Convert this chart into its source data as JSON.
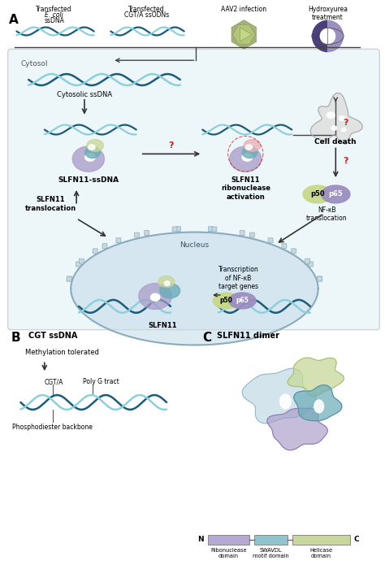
{
  "bg_color": "#ffffff",
  "cytosol_bg": "#ddeef5",
  "nucleus_bg": "#c5dcea",
  "dna_dark": "#1a5c7a",
  "dna_light": "#8ecfdc",
  "protein_purple": "#a89ac8",
  "protein_green": "#c8d89a",
  "protein_teal": "#6aacb8",
  "protein_lightblue": "#c5dce8",
  "protein_pink": "#e8b0b8",
  "nfkb_p50": "#c8d88a",
  "nfkb_p65": "#9b8fc0",
  "ribonuclease_color": "#b5a8d5",
  "swavdl_color": "#90c4d0",
  "helicase_color": "#c8d89a",
  "virus_color": "#b8c87a",
  "pill_dark": "#4a3f7a",
  "pill_light": "#9b8fc0",
  "arrow_dark": "#333333",
  "arrow_red": "#cc2222",
  "nucleus_border": "#8aacbc",
  "cell_death_fill": "#e0e0e0",
  "labels": {
    "panel_A": "A",
    "panel_B": "B",
    "panel_C": "C",
    "cytosol": "Cytosol",
    "cytosolic_ssdna": "Cytosolic ssDNA",
    "slfn11_ssdna": "SLFN11-ssDNA",
    "slfn11_ribo": "SLFN11\nribonuclease\nactivation",
    "slfn11_translocate": "SLFN11\ntranslocation",
    "cell_death": "Cell death",
    "nfkb_translocate": "NF-κB\ntranslocation",
    "nucleus": "Nucleus",
    "transcription": "Transcription\nof NF-κB\ntarget genes",
    "slfn11_nucleus": "SLFN11",
    "cgt_ssdna": "CGT ssDNA",
    "methylation": "Methylation tolerated",
    "cgta": "CGT/A",
    "poly_g": "Poly G tract",
    "phosphodiester": "Phosphodiester backbone",
    "slfn11_dimer": "SLFN11 dimer",
    "N_label": "N",
    "C_label": "C",
    "ribonuclease_domain": "Ribonuclease\ndomain",
    "swavdl_domain": "SWAVDL\nmotif domain",
    "helicase_domain": "Helicase\ndomain",
    "p50": "p50",
    "p65": "p65",
    "aav2": "AAV2 infection",
    "hydroxyurea": "Hydroxyurea\ntreatment"
  }
}
